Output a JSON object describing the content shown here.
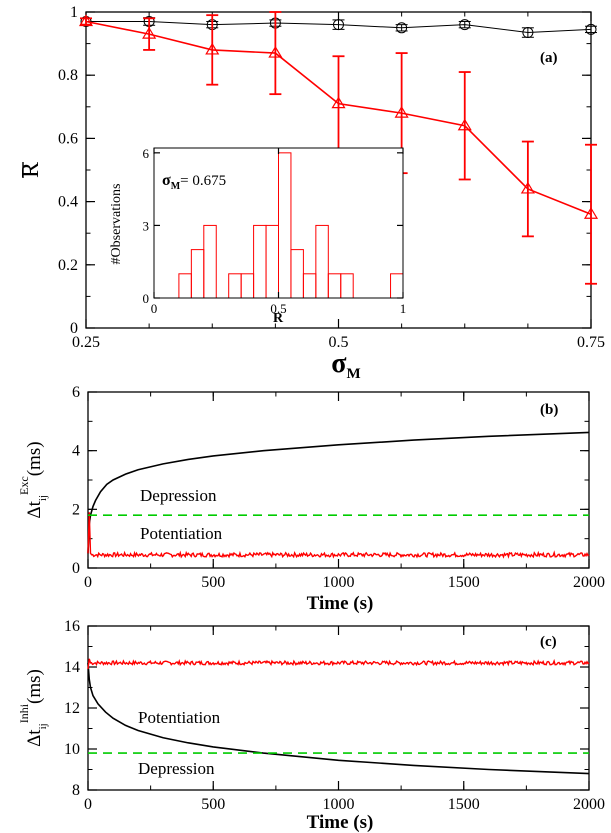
{
  "chart_data": [
    {
      "type": "line",
      "panel_label": "(a)",
      "xlabel": "σ",
      "xlabel_sub": "M",
      "ylabel": "R",
      "xlim": [
        0.25,
        0.75
      ],
      "ylim": [
        0,
        1
      ],
      "x_ticks": [
        0.25,
        0.5,
        0.75
      ],
      "y_ticks": [
        0,
        0.2,
        0.4,
        0.6,
        0.8,
        1
      ],
      "x_tick_labels": [
        "0.25",
        "0.5",
        "0.75"
      ],
      "y_tick_labels": [
        "0",
        "0.2",
        "0.4",
        "0.6",
        "0.8",
        "1"
      ],
      "series": [
        {
          "color": "#000000",
          "marker": "circle",
          "x": [
            0.25,
            0.3125,
            0.375,
            0.4375,
            0.5,
            0.5625,
            0.625,
            0.6875,
            0.75
          ],
          "y": [
            0.97,
            0.97,
            0.96,
            0.965,
            0.96,
            0.95,
            0.96,
            0.935,
            0.945
          ],
          "err": [
            0.01,
            0.012,
            0.01,
            0.01,
            0.015,
            0.01,
            0.01,
            0.015,
            0.01
          ]
        },
        {
          "color": "#ff0000",
          "marker": "triangle",
          "x": [
            0.25,
            0.3125,
            0.375,
            0.4375,
            0.5,
            0.5625,
            0.625,
            0.6875,
            0.75
          ],
          "y": [
            0.97,
            0.93,
            0.88,
            0.87,
            0.71,
            0.68,
            0.64,
            0.44,
            0.36
          ],
          "err": [
            0.01,
            0.05,
            0.11,
            0.13,
            0.15,
            0.19,
            0.17,
            0.15,
            0.22
          ]
        }
      ],
      "inset": {
        "type": "bar",
        "color": "#ff0000",
        "annotation": "σ",
        "annotation_sub": "M",
        "annotation_value": "= 0.675",
        "xlabel": "R",
        "ylabel": "#Observations",
        "xlim": [
          0,
          1
        ],
        "ylim": [
          0,
          6.2
        ],
        "x_ticks": [
          0,
          0.5,
          1
        ],
        "y_ticks": [
          0,
          3,
          6
        ],
        "x_tick_labels": [
          "0",
          "0.5",
          "1"
        ],
        "y_tick_labels": [
          "0",
          "3",
          "6"
        ],
        "bin_width": 0.05,
        "bin_starts": [
          0.1,
          0.15,
          0.2,
          0.3,
          0.35,
          0.4,
          0.45,
          0.5,
          0.55,
          0.6,
          0.65,
          0.7,
          0.75,
          0.95
        ],
        "counts": [
          1,
          2,
          3,
          1,
          1,
          3,
          3,
          6,
          2,
          1,
          3,
          1,
          1,
          1
        ]
      }
    },
    {
      "type": "line",
      "panel_label": "(b)",
      "xlabel": "Time (s)",
      "ylabel_pre": "Δt",
      "ylabel_sub": "ij",
      "ylabel_sup": "Exc",
      "ylabel_post": "(ms)",
      "xlim": [
        0,
        2000
      ],
      "ylim": [
        0,
        6
      ],
      "x_ticks": [
        0,
        500,
        1000,
        1500,
        2000
      ],
      "y_ticks": [
        0,
        2,
        4,
        6
      ],
      "x_tick_labels": [
        "0",
        "500",
        "1000",
        "1500",
        "2000"
      ],
      "y_tick_labels": [
        "0",
        "2",
        "4",
        "6"
      ],
      "annotations": [
        "Depression",
        "Potentiation"
      ],
      "threshold": 1.8,
      "series": [
        {
          "color": "#000000",
          "x": [
            0,
            5,
            10,
            20,
            30,
            50,
            75,
            100,
            150,
            200,
            300,
            400,
            500,
            700,
            1000,
            1300,
            1600,
            2000
          ],
          "y": [
            0.5,
            1.5,
            1.8,
            2.1,
            2.3,
            2.6,
            2.85,
            3.0,
            3.2,
            3.35,
            3.55,
            3.7,
            3.82,
            4.0,
            4.2,
            4.36,
            4.49,
            4.62
          ]
        },
        {
          "color": "#ff0000",
          "noisy": true,
          "x": [
            0,
            5,
            10,
            15,
            2000
          ],
          "y": [
            0.5,
            1.9,
            0.5,
            0.45,
            0.45
          ]
        },
        {
          "color": "#00cc00",
          "dashed": true,
          "x": [
            0,
            2000
          ],
          "y": [
            1.8,
            1.8
          ]
        }
      ]
    },
    {
      "type": "line",
      "panel_label": "(c)",
      "xlabel": "Time (s)",
      "ylabel_pre": "Δt",
      "ylabel_sub": "ij",
      "ylabel_sup": "Inhi",
      "ylabel_post": "(ms)",
      "xlim": [
        0,
        2000
      ],
      "ylim": [
        8,
        16
      ],
      "x_ticks": [
        0,
        500,
        1000,
        1500,
        2000
      ],
      "y_ticks": [
        8,
        10,
        12,
        14,
        16
      ],
      "x_tick_labels": [
        "0",
        "500",
        "1000",
        "1500",
        "2000"
      ],
      "y_tick_labels": [
        "8",
        "10",
        "12",
        "14",
        "16"
      ],
      "annotations": [
        "Potentiation",
        "Depression"
      ],
      "threshold": 9.8,
      "series": [
        {
          "color": "#000000",
          "x": [
            0,
            5,
            10,
            20,
            40,
            70,
            100,
            150,
            200,
            300,
            400,
            500,
            700,
            1000,
            1300,
            1600,
            2000
          ],
          "y": [
            14.2,
            13.4,
            13.0,
            12.6,
            12.2,
            11.8,
            11.5,
            11.15,
            10.9,
            10.55,
            10.3,
            10.1,
            9.8,
            9.45,
            9.2,
            9.0,
            8.8
          ]
        },
        {
          "color": "#ff0000",
          "noisy": true,
          "x": [
            0,
            5,
            10,
            2000
          ],
          "y": [
            13.9,
            14.4,
            14.2,
            14.2
          ]
        },
        {
          "color": "#00cc00",
          "dashed": true,
          "x": [
            0,
            2000
          ],
          "y": [
            9.8,
            9.8
          ]
        }
      ]
    }
  ]
}
